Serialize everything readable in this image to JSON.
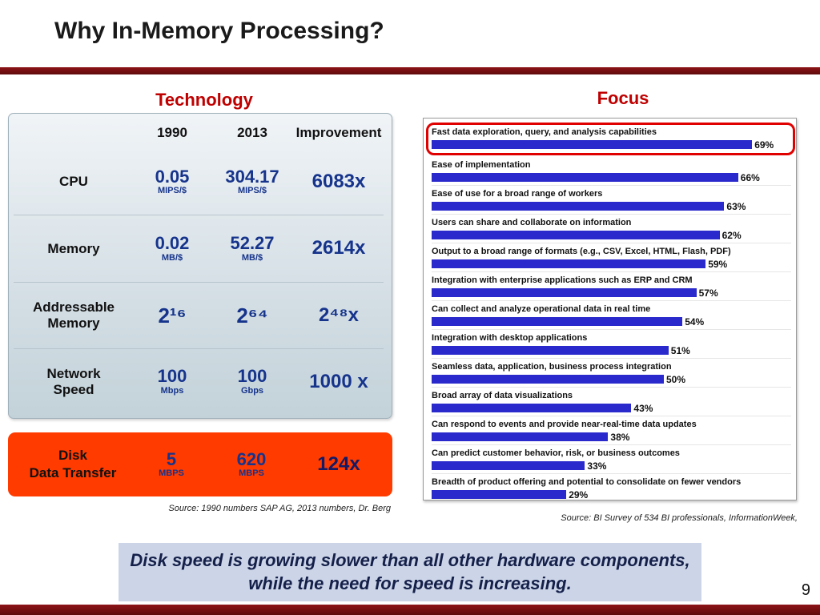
{
  "slide": {
    "title": "Why In-Memory Processing?",
    "page_number": "9"
  },
  "colors": {
    "maroon": "#8d1417",
    "heading_red": "#c00000",
    "value_blue": "#16348c",
    "disk_improve_blue": "#131a66",
    "orange": "#ff3b00",
    "bar_blue": "#2929cc",
    "highlight_red": "#e10000",
    "callout_bg": "#ccd5e8"
  },
  "technology": {
    "heading": "Technology",
    "columns": [
      "1990",
      "2013",
      "Improvement"
    ],
    "rows": [
      {
        "label": "CPU",
        "v1990": "0.05",
        "u1990": "MIPS/$",
        "v2013": "304.17",
        "u2013": "MIPS/$",
        "improvement": "6083x"
      },
      {
        "label": "Memory",
        "v1990": "0.02",
        "u1990": "MB/$",
        "v2013": "52.27",
        "u2013": "MB/$",
        "improvement": "2614x"
      },
      {
        "label": "Addressable Memory",
        "v1990": "2¹⁶",
        "u1990": "",
        "v2013": "2⁶⁴",
        "u2013": "",
        "improvement": "2⁴⁸x"
      },
      {
        "label": "Network Speed",
        "v1990": "100",
        "u1990": "Mbps",
        "v2013": "100",
        "u2013": "Gbps",
        "improvement": "1000 x"
      }
    ],
    "disk": {
      "label_line1": "Disk",
      "label_line2": "Data Transfer",
      "v1990": "5",
      "u1990": "MBPS",
      "v2013": "620",
      "u2013": "MBPS",
      "improvement": "124x"
    },
    "source": "Source: 1990 numbers SAP AG, 2013 numbers, Dr. Berg"
  },
  "focus": {
    "heading": "Focus",
    "source": "Source: BI Survey of 534 BI professionals, InformationWeek,"
  },
  "chart_data": {
    "type": "bar",
    "orientation": "horizontal",
    "title": "Focus",
    "unit": "%",
    "xlim": [
      0,
      75
    ],
    "legend": false,
    "grid": false,
    "value_labels": true,
    "highlighted_index": 0,
    "categories": [
      "Fast data exploration, query, and analysis capabilities",
      "Ease of implementation",
      "Ease of use for a broad range of workers",
      "Users can share and collaborate on information",
      "Output to a broad range of formats (e.g., CSV, Excel, HTML, Flash, PDF)",
      "Integration with enterprise applications such as ERP and CRM",
      "Can collect and analyze operational data in real time",
      "Integration with desktop applications",
      "Seamless data, application, business process integration",
      "Broad array of data visualizations",
      "Can respond to events and provide near-real-time data updates",
      "Can predict customer behavior, risk, or business outcomes",
      "Breadth of product offering and potential to consolidate on fewer vendors"
    ],
    "values": [
      69,
      66,
      63,
      62,
      59,
      57,
      54,
      51,
      50,
      43,
      38,
      33,
      29
    ]
  },
  "callout": {
    "text": "Disk speed is growing slower than all other hardware components, while the need for speed is increasing."
  }
}
